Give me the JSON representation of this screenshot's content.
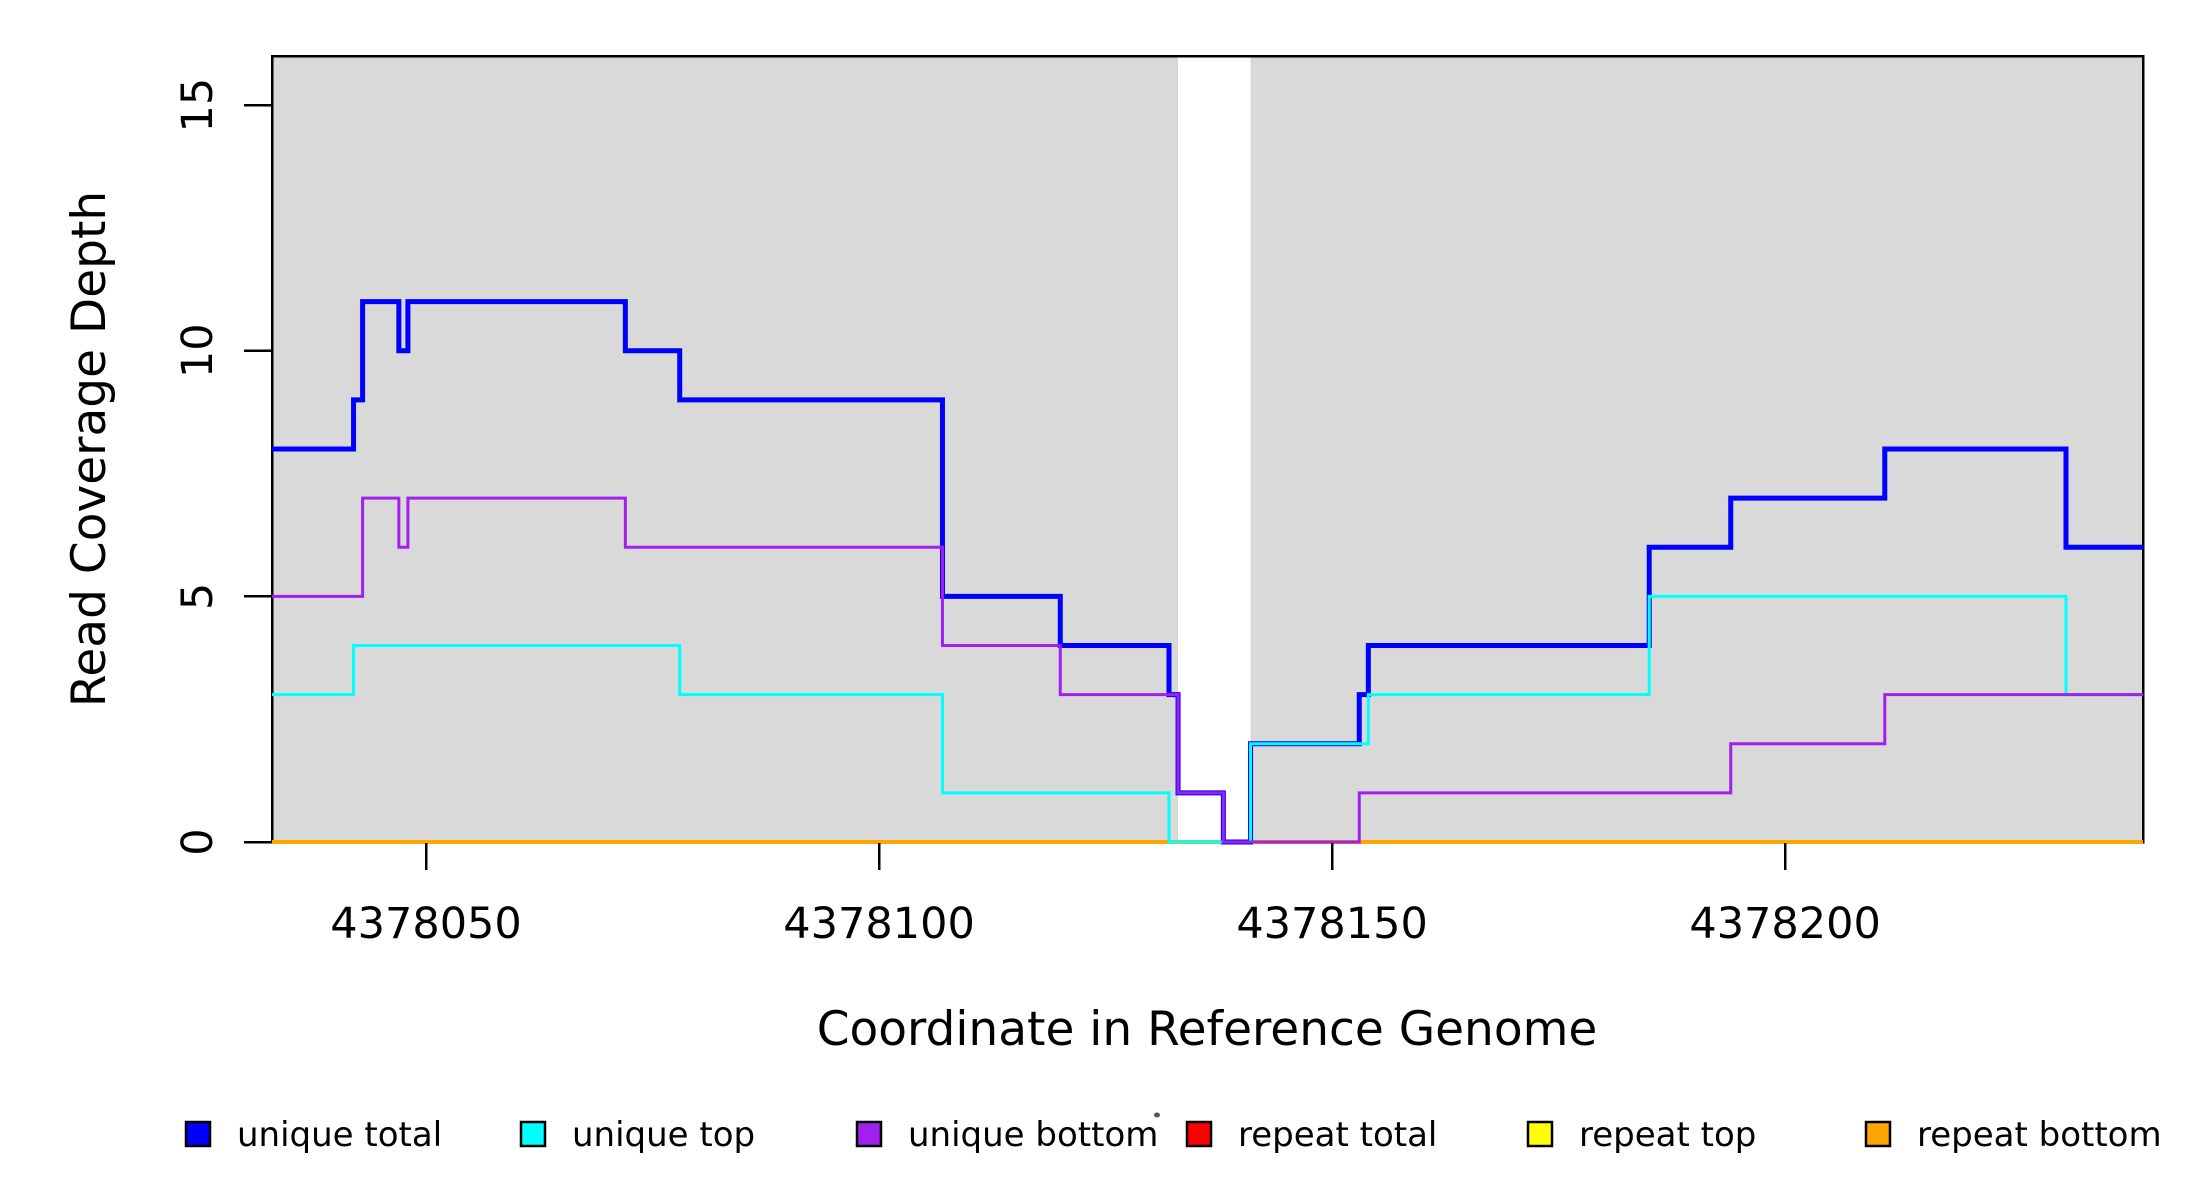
{
  "page": {
    "background": "#ffffff"
  },
  "chart_data": {
    "type": "line",
    "variant": "step-post",
    "title": "",
    "xlabel": "Coordinate in Reference Genome",
    "ylabel": "Read Coverage Depth",
    "xlim": [
      4378033,
      4378239.5
    ],
    "ylim": [
      0,
      16
    ],
    "grid": false,
    "legend_position": "bottom",
    "x_ticks": [
      {
        "value": 4378050,
        "label": "4378050"
      },
      {
        "value": 4378100,
        "label": "4378100"
      },
      {
        "value": 4378150,
        "label": "4378150"
      },
      {
        "value": 4378200,
        "label": "4378200"
      }
    ],
    "y_ticks": [
      {
        "value": 0,
        "label": "0"
      },
      {
        "value": 5,
        "label": "5"
      },
      {
        "value": 10,
        "label": "10"
      },
      {
        "value": 15,
        "label": "15"
      }
    ],
    "coverage_region_color": "#d9d9d9",
    "coverage_regions": [
      [
        4378033,
        4378133
      ],
      [
        4378141,
        4378239.5
      ]
    ],
    "gap_region": [
      4378133,
      4378141
    ],
    "x_end": 4378239.5,
    "series": [
      {
        "name": "repeat total",
        "color": "#ff0000",
        "line_width": 3,
        "steps": [
          [
            4378033,
            0
          ]
        ]
      },
      {
        "name": "repeat top",
        "color": "#ffff00",
        "line_width": 3,
        "steps": [
          [
            4378033,
            0
          ]
        ]
      },
      {
        "name": "repeat bottom",
        "color": "#ffa500",
        "line_width": 4,
        "steps": [
          [
            4378033,
            0
          ]
        ]
      },
      {
        "name": "unique total",
        "color": "#0000ff",
        "line_width": 5,
        "steps": [
          [
            4378033,
            8
          ],
          [
            4378042,
            9
          ],
          [
            4378043,
            11
          ],
          [
            4378047,
            10
          ],
          [
            4378048,
            11
          ],
          [
            4378072,
            10
          ],
          [
            4378078,
            9
          ],
          [
            4378107,
            5
          ],
          [
            4378120,
            4
          ],
          [
            4378132,
            3
          ],
          [
            4378133,
            1
          ],
          [
            4378138,
            0
          ],
          [
            4378141,
            2
          ],
          [
            4378153,
            3
          ],
          [
            4378154,
            4
          ],
          [
            4378185,
            6
          ],
          [
            4378194,
            7
          ],
          [
            4378211,
            8
          ],
          [
            4378231,
            6
          ]
        ]
      },
      {
        "name": "unique top",
        "color": "#00ffff",
        "line_width": 3,
        "steps": [
          [
            4378033,
            3
          ],
          [
            4378042,
            4
          ],
          [
            4378078,
            3
          ],
          [
            4378107,
            1
          ],
          [
            4378132,
            0
          ],
          [
            4378141,
            2
          ],
          [
            4378154,
            3
          ],
          [
            4378185,
            5
          ],
          [
            4378231,
            3
          ]
        ]
      },
      {
        "name": "unique bottom",
        "color": "#a020f0",
        "line_width": 3,
        "steps": [
          [
            4378033,
            5
          ],
          [
            4378043,
            7
          ],
          [
            4378047,
            6
          ],
          [
            4378048,
            7
          ],
          [
            4378072,
            6
          ],
          [
            4378107,
            4
          ],
          [
            4378120,
            3
          ],
          [
            4378133,
            1
          ],
          [
            4378138,
            0
          ],
          [
            4378153,
            1
          ],
          [
            4378194,
            2
          ],
          [
            4378211,
            3
          ]
        ]
      }
    ],
    "legend": [
      {
        "label": "unique total",
        "color": "#0000ff"
      },
      {
        "label": "unique top",
        "color": "#00ffff"
      },
      {
        "label": "unique bottom",
        "color": "#a020f0"
      },
      {
        "label": "repeat total",
        "color": "#ff0000"
      },
      {
        "label": "repeat top",
        "color": "#ffff00"
      },
      {
        "label": "repeat bottom",
        "color": "#ffa500"
      }
    ]
  }
}
